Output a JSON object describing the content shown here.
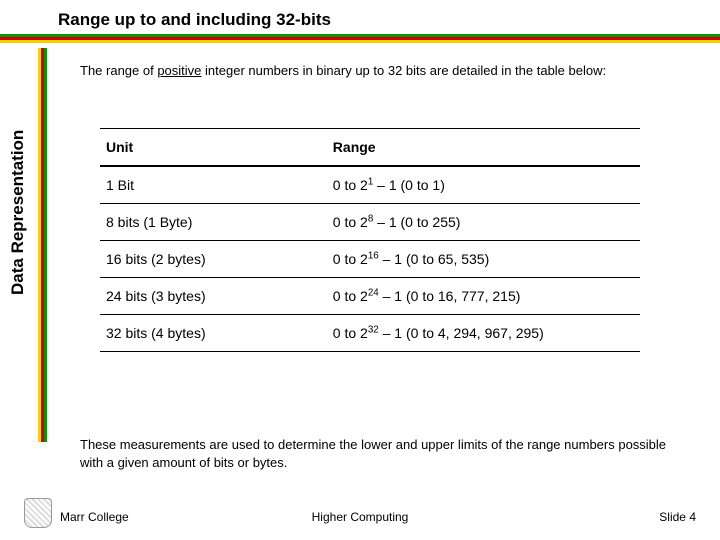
{
  "title": "Range up to and including 32-bits",
  "intro_before": "The range of ",
  "intro_underlined": "positive",
  "intro_after": " integer numbers in binary up to 32 bits are detailed in the table below:",
  "side_label": "Data Representation",
  "colors": {
    "green": "#009900",
    "red": "#cc0000",
    "yellow": "#ffcc00"
  },
  "table": {
    "headers": {
      "unit": "Unit",
      "range": "Range"
    },
    "rows": [
      {
        "unit": "1 Bit",
        "prefix": "0 to 2",
        "exp": "1",
        "suffix": " – 1 (0 to 1)"
      },
      {
        "unit": "8 bits (1 Byte)",
        "prefix": "0 to 2",
        "exp": "8",
        "suffix": " – 1 (0 to 255)"
      },
      {
        "unit": "16 bits (2 bytes)",
        "prefix": "0 to 2",
        "exp": "16",
        "suffix": " – 1 (0 to 65, 535)"
      },
      {
        "unit": "24 bits (3 bytes)",
        "prefix": "0 to 2",
        "exp": "24",
        "suffix": " – 1 (0 to 16, 777, 215)"
      },
      {
        "unit": "32 bits (4 bytes)",
        "prefix": "0 to 2",
        "exp": "32",
        "suffix": " – 1 (0 to 4, 294, 967, 295)"
      }
    ]
  },
  "outro": "These measurements  are used to determine the lower and upper limits of the range numbers possible with a given amount of bits or bytes.",
  "footer": {
    "left": "Marr College",
    "center": "Higher Computing",
    "right": "Slide 4"
  }
}
